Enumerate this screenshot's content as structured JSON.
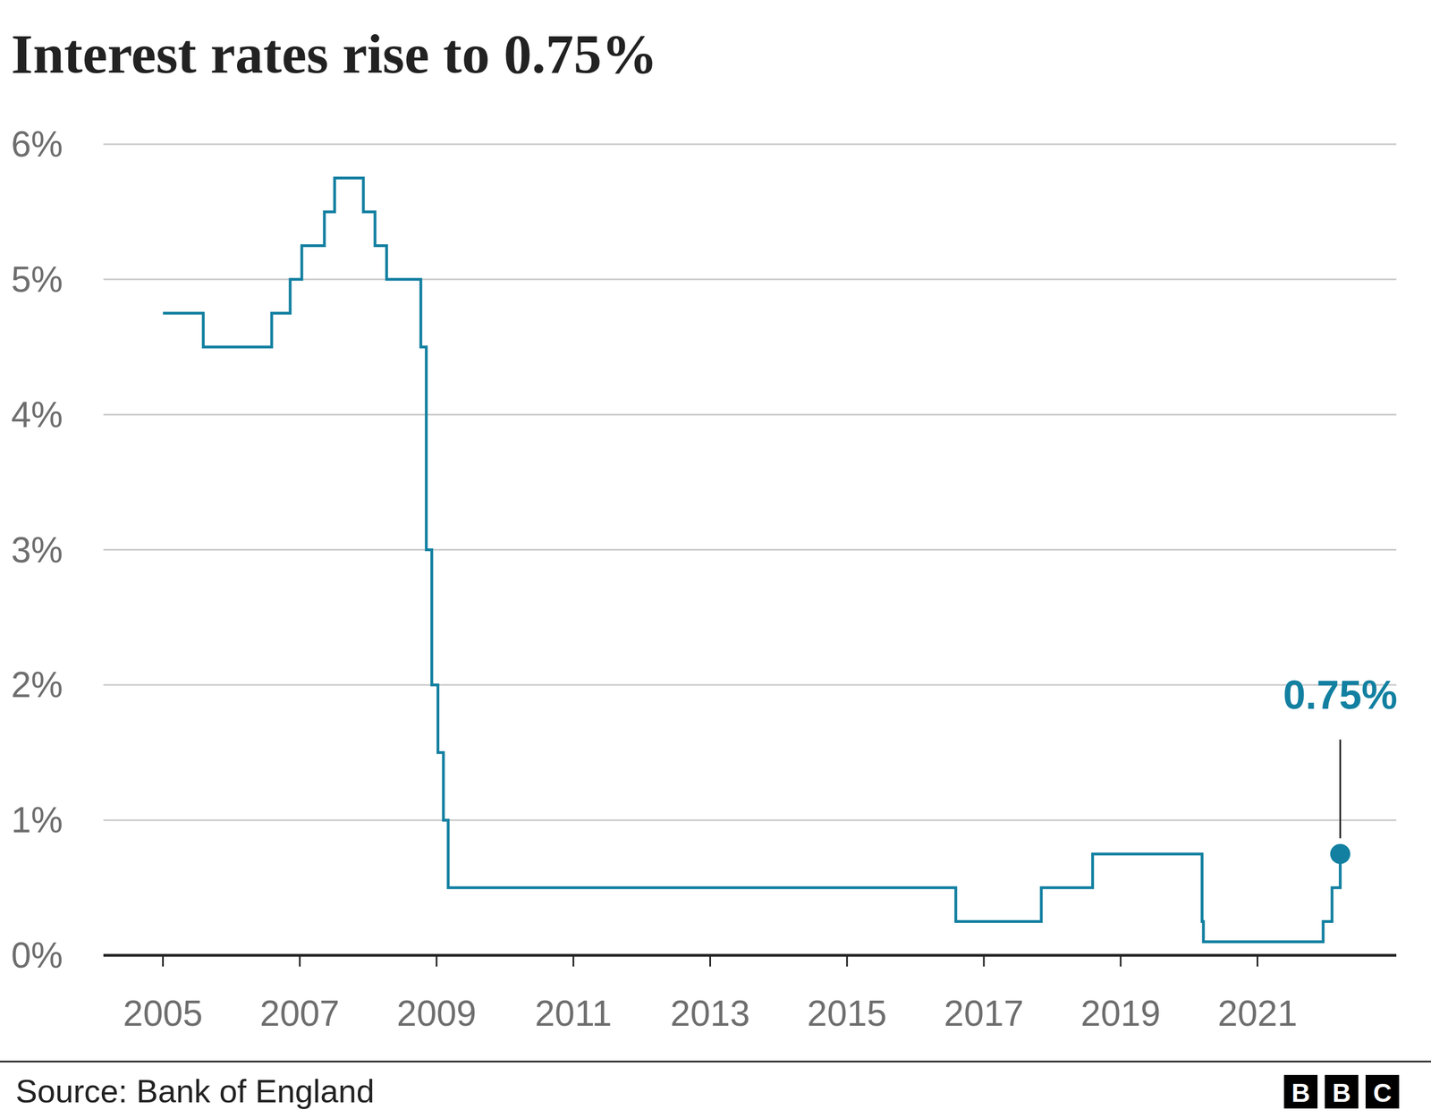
{
  "chart_data": {
    "type": "line",
    "title": "Interest rates rise to 0.75%",
    "x": [
      2005.0,
      2005.59,
      2006.59,
      2006.86,
      2007.03,
      2007.36,
      2007.51,
      2007.93,
      2008.1,
      2008.27,
      2008.77,
      2008.85,
      2008.93,
      2009.02,
      2009.1,
      2009.17,
      2016.59,
      2017.84,
      2018.59,
      2020.19,
      2020.21,
      2021.96,
      2022.09,
      2022.21
    ],
    "values": [
      4.75,
      4.5,
      4.75,
      5.0,
      5.25,
      5.5,
      5.75,
      5.5,
      5.25,
      5.0,
      4.5,
      3.0,
      2.0,
      1.5,
      1.0,
      0.5,
      0.25,
      0.5,
      0.75,
      0.25,
      0.1,
      0.25,
      0.5,
      0.75
    ],
    "color": "#1380a1",
    "line_style": "step",
    "xlim": [
      2004.13,
      2023.03
    ],
    "xticks": [
      2005,
      2007,
      2009,
      2011,
      2013,
      2015,
      2017,
      2019,
      2021
    ],
    "ylim": [
      0,
      6
    ],
    "yticks": [
      {
        "value": 0,
        "label": "0%"
      },
      {
        "value": 1,
        "label": "1%"
      },
      {
        "value": 2,
        "label": "2%"
      },
      {
        "value": 3,
        "label": "3%"
      },
      {
        "value": 4,
        "label": "4%"
      },
      {
        "value": 5,
        "label": "5%"
      },
      {
        "value": 6,
        "label": "6%"
      }
    ],
    "grid": true,
    "annotations": [
      {
        "text": "0.75%",
        "x": 2022.21,
        "y": 0.75
      }
    ],
    "source": "Source: Bank of England",
    "logo": "BBC"
  }
}
